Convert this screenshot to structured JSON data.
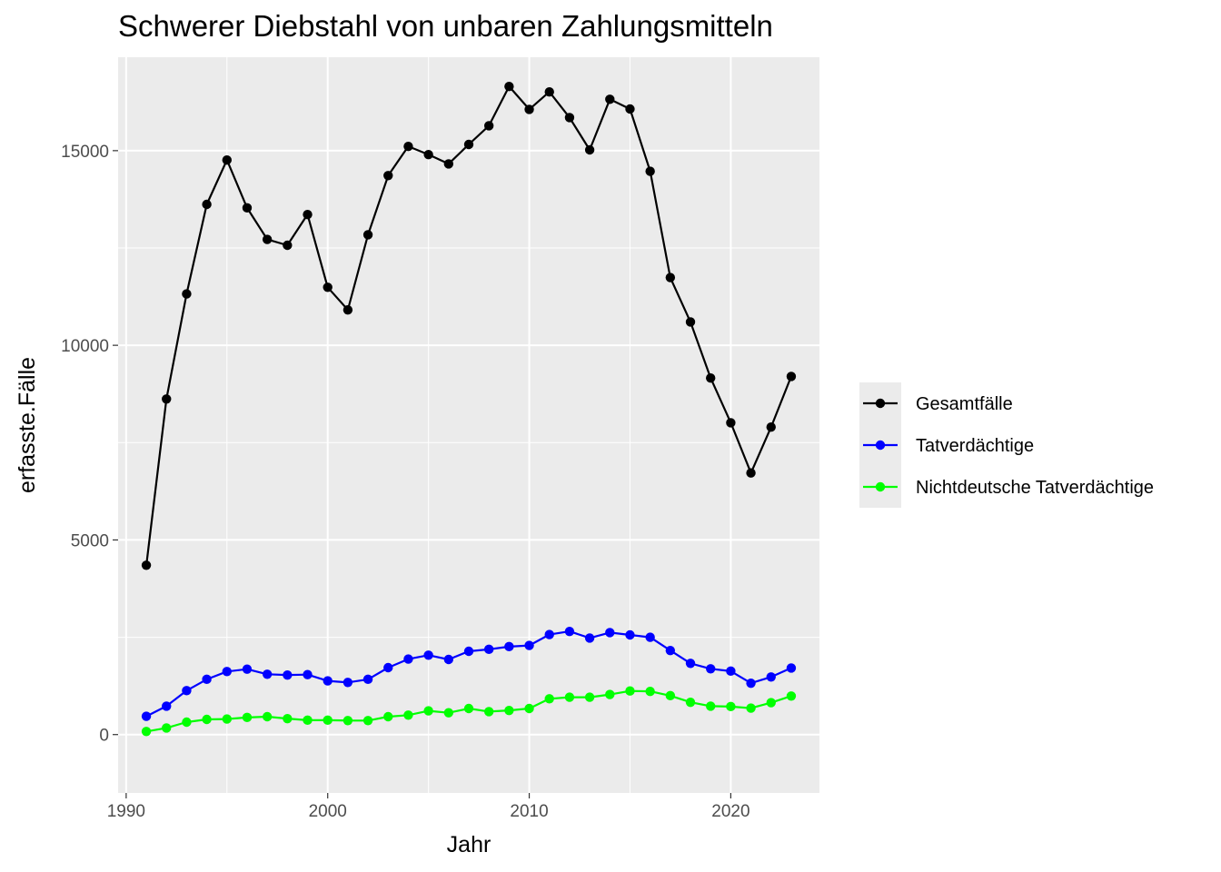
{
  "chart_data": {
    "type": "line",
    "title": "Schwerer Diebstahl von unbaren Zahlungsmitteln",
    "xlabel": "Jahr",
    "ylabel": "erfasste.Fälle",
    "xlim": [
      1989.6,
      2024.4
    ],
    "ylim": [
      -1500,
      17400
    ],
    "x_ticks": [
      1990,
      2000,
      2010,
      2020
    ],
    "x_tick_labels": [
      "1990",
      "2000",
      "2010",
      "2020"
    ],
    "y_ticks": [
      0,
      5000,
      10000,
      15000
    ],
    "y_tick_labels": [
      "0",
      "5000",
      "10000",
      "15000"
    ],
    "grid": true,
    "legend_position": "right",
    "x": [
      1991,
      1992,
      1993,
      1994,
      1995,
      1996,
      1997,
      1998,
      1999,
      2000,
      2001,
      2002,
      2003,
      2004,
      2005,
      2006,
      2007,
      2008,
      2009,
      2010,
      2011,
      2012,
      2013,
      2014,
      2015,
      2016,
      2017,
      2018,
      2019,
      2020,
      2021,
      2022,
      2023
    ],
    "series": [
      {
        "name": "Gesamtfälle",
        "color": "#000000",
        "values": [
          4350,
          8620,
          11320,
          13620,
          14760,
          13530,
          12720,
          12570,
          13360,
          11490,
          10910,
          12840,
          14360,
          15110,
          14900,
          14660,
          15160,
          15640,
          16650,
          16060,
          16510,
          15850,
          15020,
          16320,
          16070,
          14470,
          11740,
          10600,
          9160,
          8010,
          6720,
          7900,
          9200
        ]
      },
      {
        "name": "Tatverdächtige",
        "color": "#0000ff",
        "values": [
          470,
          730,
          1130,
          1420,
          1620,
          1680,
          1550,
          1530,
          1540,
          1380,
          1340,
          1420,
          1720,
          1940,
          2040,
          1930,
          2140,
          2190,
          2260,
          2290,
          2570,
          2650,
          2480,
          2620,
          2560,
          2500,
          2160,
          1830,
          1690,
          1630,
          1320,
          1480,
          1710
        ]
      },
      {
        "name": "Nichtdeutsche Tatverdächtige",
        "color": "#00ff00",
        "values": [
          80,
          170,
          320,
          390,
          400,
          440,
          460,
          410,
          370,
          370,
          360,
          360,
          460,
          500,
          610,
          560,
          670,
          590,
          620,
          670,
          920,
          960,
          960,
          1030,
          1120,
          1110,
          1000,
          830,
          730,
          720,
          680,
          820,
          990
        ]
      }
    ]
  }
}
